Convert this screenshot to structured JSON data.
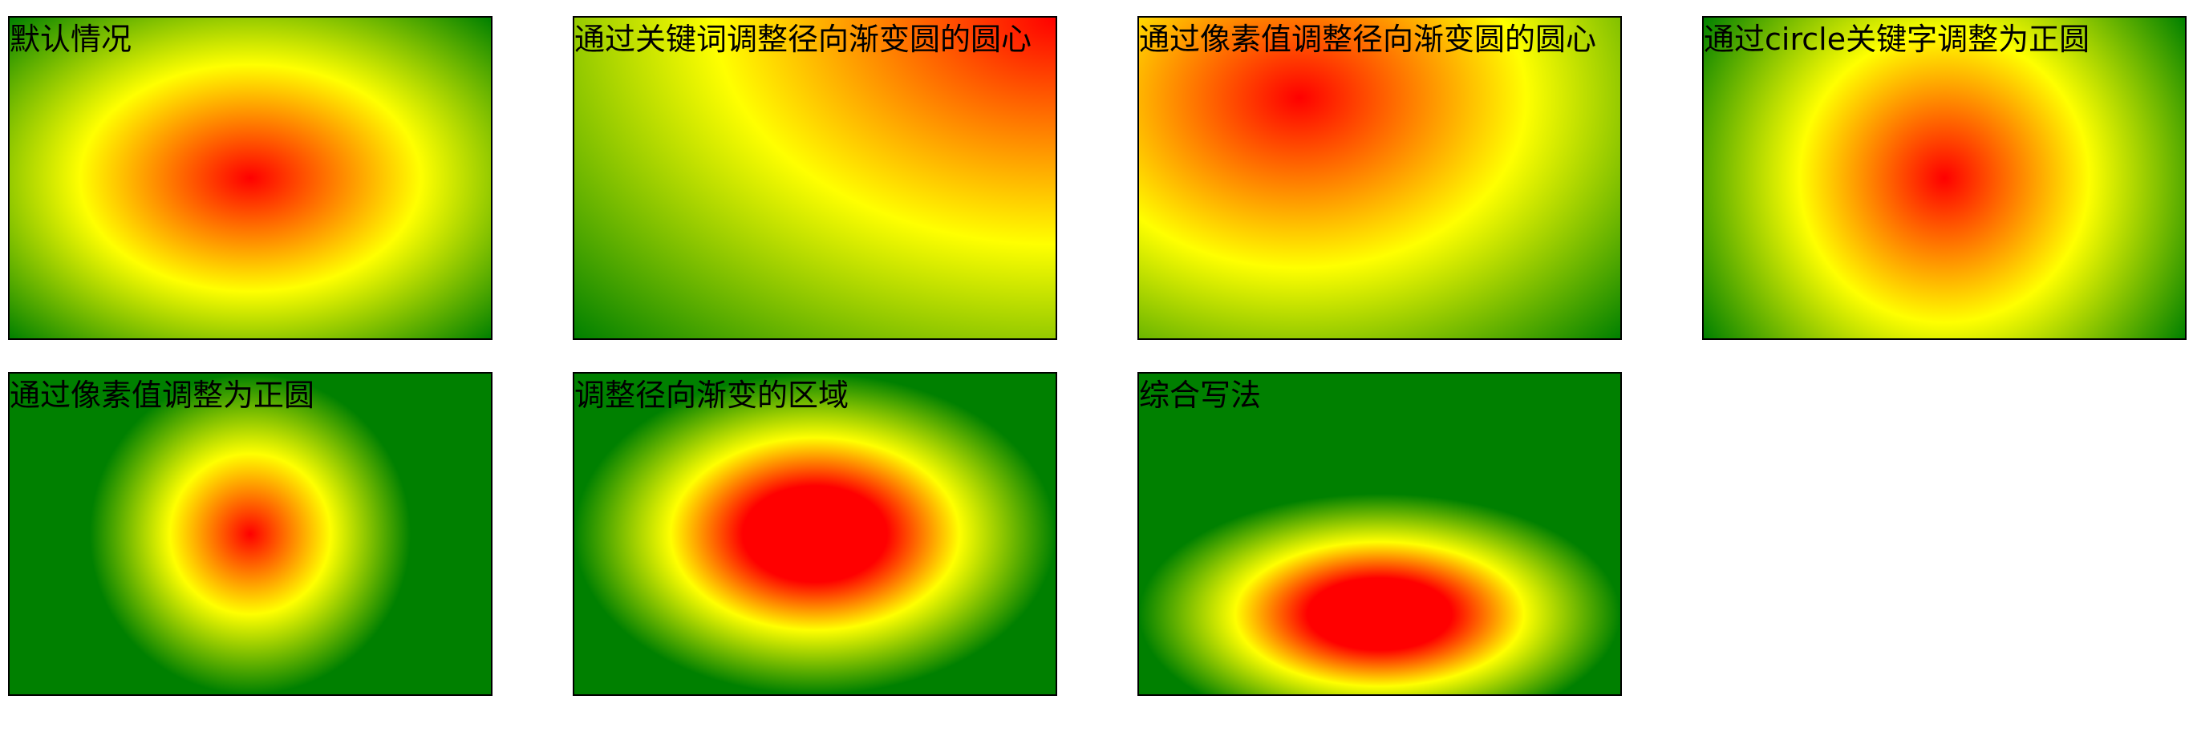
{
  "demos": [
    {
      "label": "默认情况"
    },
    {
      "label": "通过关键词调整径向渐变圆的圆心"
    },
    {
      "label": "通过像素值调整径向渐变圆的圆心"
    },
    {
      "label": "通过circle关键字调整为正圆"
    },
    {
      "label": "通过像素值调整为正圆"
    },
    {
      "label": "调整径向渐变的区域"
    },
    {
      "label": "综合写法"
    }
  ],
  "colors": {
    "inner": "#ff0000",
    "middle": "#ffff00",
    "outer": "#008000",
    "border": "#000000"
  }
}
